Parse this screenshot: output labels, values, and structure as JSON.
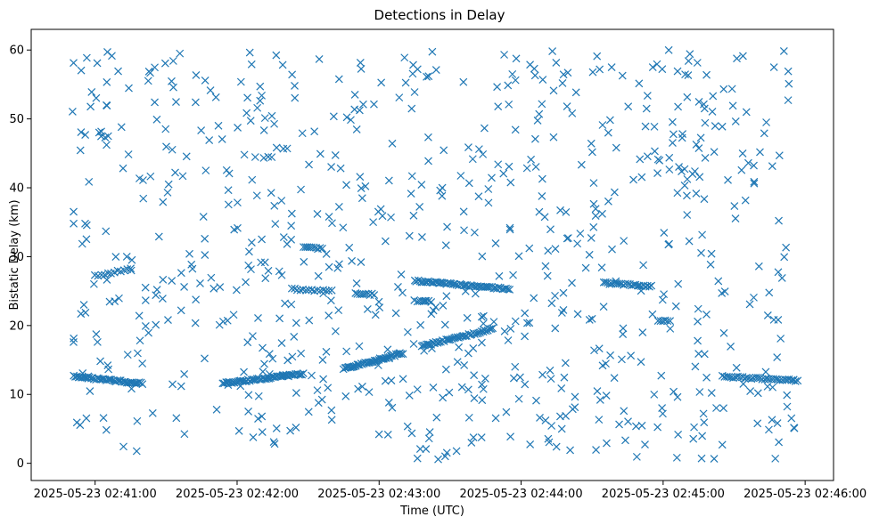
{
  "chart_data": {
    "type": "scatter",
    "title": "Detections in Delay",
    "xlabel": "Time (UTC)",
    "ylabel": "Bistatic Delay (km)",
    "x_axis_type": "datetime",
    "xlim": [
      "2025-05-23 02:40:33",
      "2025-05-23 02:46:12"
    ],
    "ylim": [
      -2.5,
      63
    ],
    "x_ticks": [
      "2025-05-23 02:41:00",
      "2025-05-23 02:42:00",
      "2025-05-23 02:43:00",
      "2025-05-23 02:44:00",
      "2025-05-23 02:45:00",
      "2025-05-23 02:46:00"
    ],
    "y_ticks": [
      0,
      10,
      20,
      30,
      40,
      50,
      60
    ],
    "marker": "x",
    "color": "#1f77b4",
    "grid": false,
    "series": [
      {
        "tracks": [
          {
            "t0": "2025-05-23 02:40:51",
            "t1": "2025-05-23 02:41:20",
            "y0": 12.6,
            "y1": 11.6,
            "n": 45
          },
          {
            "t0": "2025-05-23 02:41:54",
            "t1": "2025-05-23 02:42:28",
            "y0": 11.6,
            "y1": 13.0,
            "n": 55
          },
          {
            "t0": "2025-05-23 02:42:45",
            "t1": "2025-05-23 02:43:10",
            "y0": 13.7,
            "y1": 16.0,
            "n": 45
          },
          {
            "t0": "2025-05-23 02:43:18",
            "t1": "2025-05-23 02:43:48",
            "y0": 17.0,
            "y1": 19.5,
            "n": 45
          },
          {
            "t0": "2025-05-23 02:43:15",
            "t1": "2025-05-23 02:43:55",
            "y0": 26.5,
            "y1": 25.3,
            "n": 55
          },
          {
            "t0": "2025-05-23 02:44:35",
            "t1": "2025-05-23 02:44:55",
            "y0": 26.2,
            "y1": 25.7,
            "n": 25
          },
          {
            "t0": "2025-05-23 02:45:25",
            "t1": "2025-05-23 02:45:57",
            "y0": 12.6,
            "y1": 12.0,
            "n": 35
          },
          {
            "t0": "2025-05-23 02:42:23",
            "t1": "2025-05-23 02:42:40",
            "y0": 25.3,
            "y1": 25.0,
            "n": 15
          },
          {
            "t0": "2025-05-23 02:41:00",
            "t1": "2025-05-23 02:41:15",
            "y0": 27.2,
            "y1": 28.2,
            "n": 12
          },
          {
            "t0": "2025-05-23 02:42:28",
            "t1": "2025-05-23 02:42:36",
            "y0": 31.3,
            "y1": 31.2,
            "n": 10
          },
          {
            "t0": "2025-05-23 02:42:50",
            "t1": "2025-05-23 02:42:58",
            "y0": 24.6,
            "y1": 24.5,
            "n": 10
          },
          {
            "t0": "2025-05-23 02:43:15",
            "t1": "2025-05-23 02:43:22",
            "y0": 23.6,
            "y1": 23.5,
            "n": 8
          },
          {
            "t0": "2025-05-23 02:44:58",
            "t1": "2025-05-23 02:45:03",
            "y0": 20.8,
            "y1": 20.6,
            "n": 6
          }
        ],
        "scatter_count": 760,
        "scatter_seed": 20250523
      }
    ]
  }
}
